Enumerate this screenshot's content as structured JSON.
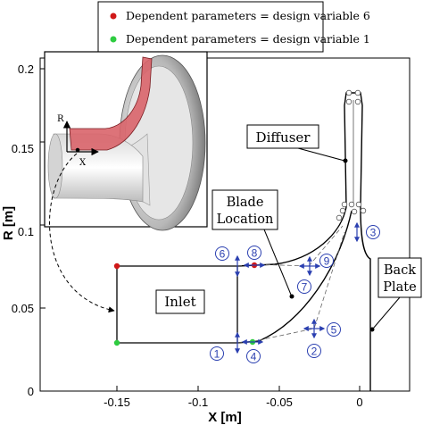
{
  "legend": {
    "items": [
      {
        "label": "Dependent parameters = design variable 6",
        "color": "#d01818"
      },
      {
        "label": "Dependent parameters = design variable 1",
        "color": "#2ecc40"
      }
    ]
  },
  "axes": {
    "xlabel": "X [m]",
    "ylabel": "R [m]",
    "xlim": [
      -0.2,
      0.02
    ],
    "ylim": [
      0,
      0.2
    ],
    "xticks": [
      "-0.15",
      "-0.1",
      "-0.05",
      "0"
    ],
    "yticks": [
      "0",
      "0.05",
      "0.1",
      "0.15",
      "0.2"
    ]
  },
  "labels": {
    "diffuser": "Diffuser",
    "blade_location": [
      "Blade",
      "Location"
    ],
    "inlet": "Inlet",
    "back_plate": [
      "Back",
      "Plate"
    ],
    "inset_r": "R",
    "inset_x": "X"
  },
  "design_variables": [
    "1",
    "2",
    "3",
    "4",
    "5",
    "6",
    "7",
    "8",
    "9"
  ],
  "colors": {
    "arrow_blue": "#2a3fb0",
    "blade_red": "#d9646a",
    "dependent_red": "#d01818",
    "dependent_green": "#2ecc40"
  }
}
